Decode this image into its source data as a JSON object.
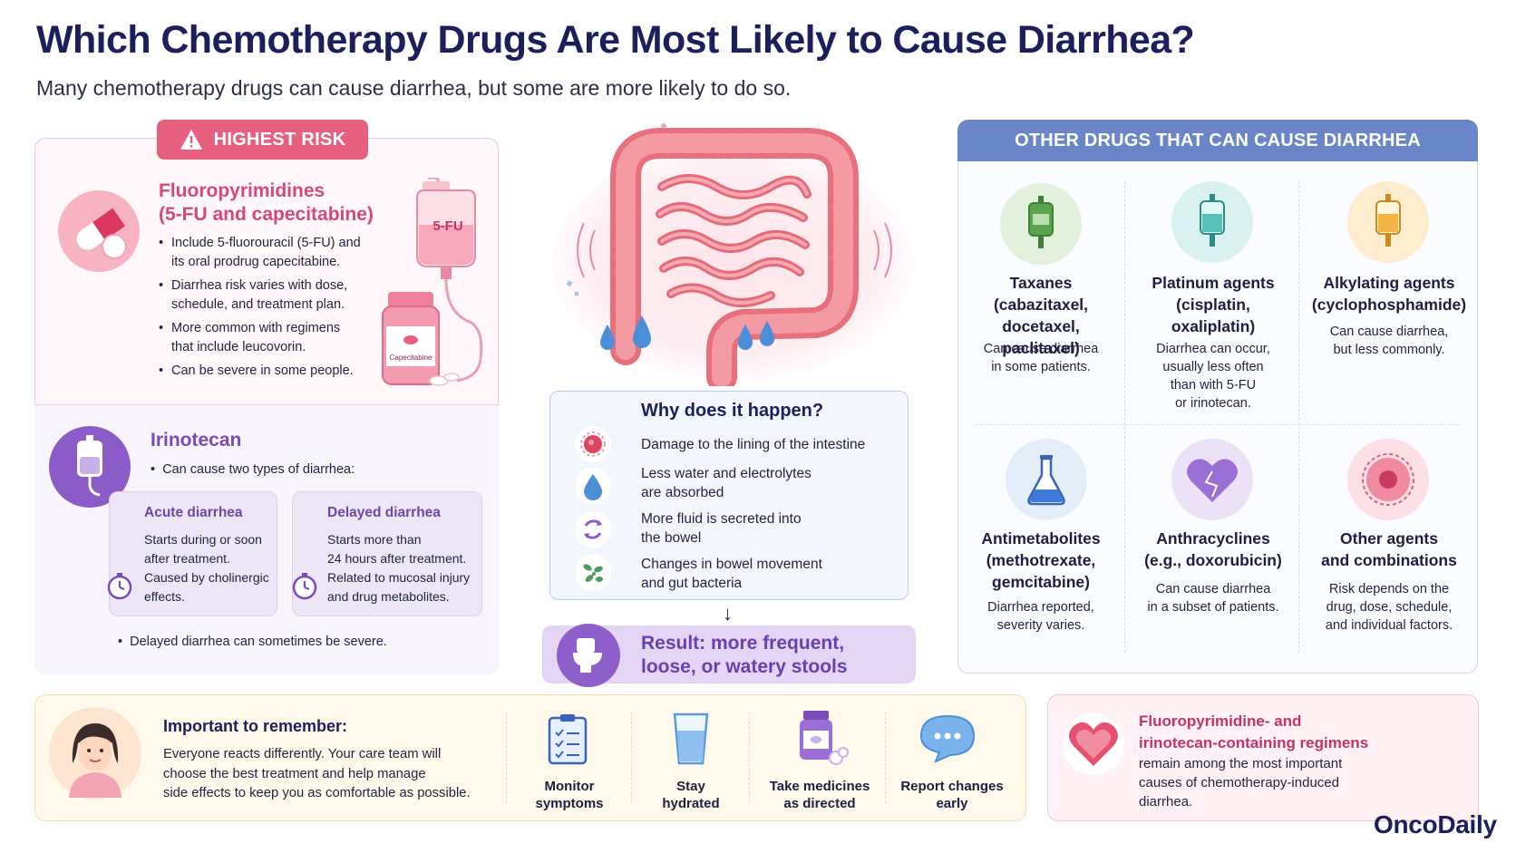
{
  "title": "Which Chemotherapy Drugs Are Most Likely to Cause Diarrhea?",
  "subtitle": "Many chemotherapy drugs can cause diarrhea, but some are more likely to do so.",
  "highest_risk": {
    "badge": "HIGHEST RISK",
    "fluoro": {
      "title_line1": "Fluoropyrimidines",
      "title_line2": "(5-FU and capecitabine)",
      "bullets": [
        [
          "Include 5-fluorouracil (5-FU) and",
          "its oral prodrug capecitabine."
        ],
        [
          "Diarrhea risk varies with dose,",
          "schedule, and treatment plan."
        ],
        [
          "More common with regimens",
          "that include leucovorin."
        ],
        [
          "Can be severe in some people.",
          ""
        ]
      ],
      "iv_bag_label": "5-FU",
      "bottle_label": "Capecitabine"
    },
    "irinotecan": {
      "title": "Irinotecan",
      "subtitle": "Can cause two types of diarrhea:",
      "acute": {
        "title": "Acute diarrhea",
        "lines": [
          "Starts during or soon",
          "after treatment.",
          "Caused by cholinergic",
          "effects."
        ]
      },
      "delayed": {
        "title": "Delayed diarrhea",
        "lines": [
          "Starts more than",
          "24 hours after treatment.",
          "Related to mucosal injury",
          "and drug metabolites."
        ]
      },
      "note": "Delayed diarrhea can sometimes be severe."
    }
  },
  "why": {
    "title": "Why does it happen?",
    "items": [
      [
        "Damage to the lining of the intestine",
        ""
      ],
      [
        "Less water and electrolytes",
        "are absorbed"
      ],
      [
        "More fluid is secreted into",
        "the bowel"
      ],
      [
        "Changes in bowel movement",
        "and gut bacteria"
      ]
    ],
    "result_line1": "Result: more frequent,",
    "result_line2": "loose, or watery stools"
  },
  "other_drugs": {
    "header": "OTHER DRUGS THAT CAN CAUSE DIARRHEA",
    "items": [
      {
        "name": [
          "Taxanes",
          "(cabazitaxel,",
          "docetaxel, paclitaxel)"
        ],
        "desc": [
          "Can cause diarrhea",
          "in some patients."
        ]
      },
      {
        "name": [
          "Platinum agents",
          "(cisplatin,",
          "oxaliplatin)"
        ],
        "desc": [
          "Diarrhea can occur,",
          "usually less often",
          "than with 5-FU",
          "or irinotecan."
        ]
      },
      {
        "name": [
          "Alkylating agents",
          "(cyclophosphamide)"
        ],
        "desc": [
          "Can cause diarrhea,",
          "but less commonly."
        ]
      },
      {
        "name": [
          "Antimetabolites",
          "(methotrexate,",
          "gemcitabine)"
        ],
        "desc": [
          "Diarrhea reported,",
          "severity varies."
        ]
      },
      {
        "name": [
          "Anthracyclines",
          "(e.g., doxorubicin)"
        ],
        "desc": [
          "Can cause diarrhea",
          "in a subset of patients."
        ]
      },
      {
        "name": [
          "Other agents",
          "and combinations"
        ],
        "desc": [
          "Risk depends on the",
          "drug, dose, schedule,",
          "and individual factors."
        ]
      }
    ]
  },
  "remember": {
    "title": "Important to remember:",
    "lines": [
      "Everyone reacts differently. Your care team will",
      "choose the best treatment and help manage",
      "side effects to keep you as comfortable as possible."
    ],
    "tips": [
      [
        "Monitor",
        "symptoms"
      ],
      [
        "Stay",
        "hydrated"
      ],
      [
        "Take medicines",
        "as directed"
      ],
      [
        "Report changes",
        "early"
      ]
    ]
  },
  "key_point": {
    "title_line1": "Fluoropyrimidine- and",
    "title_line2": "irinotecan-containing regimens",
    "lines": [
      "remain among the most important",
      "causes of chemotherapy-induced",
      "diarrhea."
    ]
  },
  "brand": "OncoDaily",
  "colors": {
    "title": "#1b1f5c",
    "highest_risk": "#e8607f",
    "irinotecan": "#8b5cc7",
    "other_header": "#6b86c8"
  }
}
